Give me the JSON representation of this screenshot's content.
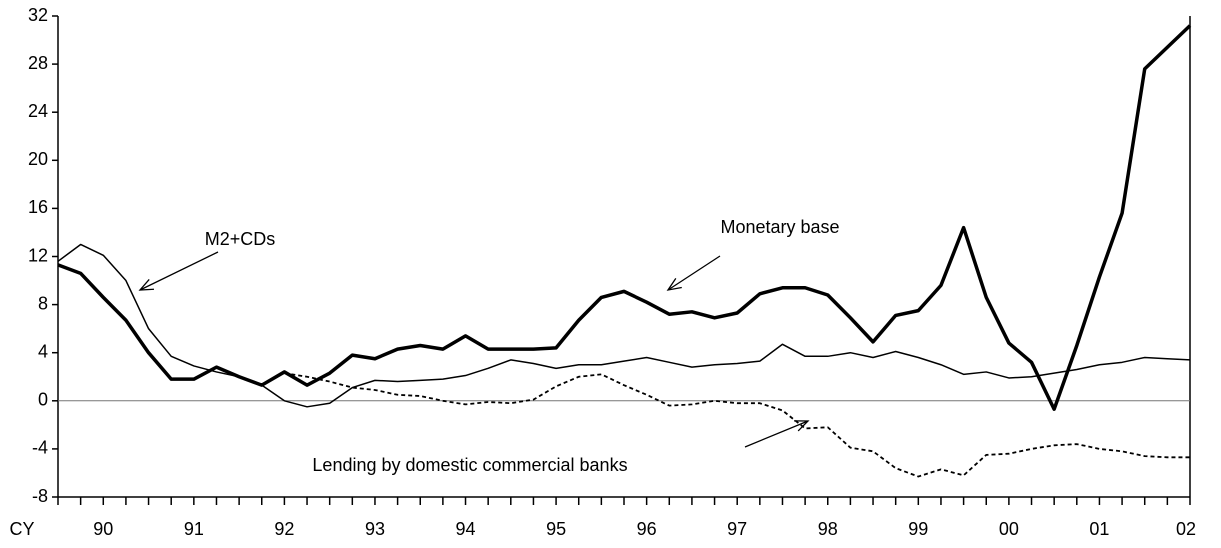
{
  "chart_data": {
    "type": "line",
    "x_label": "CY",
    "categories": [
      null,
      null,
      "90",
      null,
      null,
      null,
      "91",
      null,
      null,
      null,
      "92",
      null,
      null,
      null,
      "93",
      null,
      null,
      null,
      "94",
      null,
      null,
      null,
      "95",
      null,
      null,
      null,
      "96",
      null,
      null,
      null,
      "97",
      null,
      null,
      null,
      "98",
      null,
      null,
      null,
      "99",
      null,
      null,
      null,
      "00",
      null,
      null,
      null,
      "01",
      null,
      null,
      null,
      "02"
    ],
    "series": [
      {
        "name": "Monetary base",
        "color": "#000000",
        "style": "thick",
        "values": [
          11.3,
          10.6,
          8.6,
          6.7,
          4.0,
          1.8,
          1.8,
          2.8,
          2.0,
          1.3,
          2.4,
          1.3,
          2.3,
          3.8,
          3.5,
          4.3,
          4.6,
          4.3,
          5.4,
          4.3,
          4.3,
          4.3,
          4.4,
          6.7,
          8.6,
          9.1,
          8.2,
          7.2,
          7.4,
          6.9,
          7.3,
          8.9,
          9.4,
          9.4,
          8.8,
          6.9,
          4.9,
          7.1,
          7.5,
          9.6,
          14.4,
          8.6,
          4.8,
          3.2,
          -0.7,
          4.6,
          10.3,
          15.6,
          27.6,
          29.4,
          31.2
        ]
      },
      {
        "name": "M2+CDs",
        "color": "#000000",
        "style": "thin",
        "values": [
          11.6,
          13.0,
          12.1,
          10.0,
          6.0,
          3.7,
          2.9,
          2.4,
          2.0,
          1.3,
          0.0,
          -0.5,
          -0.2,
          1.1,
          1.7,
          1.6,
          1.7,
          1.8,
          2.1,
          2.7,
          3.4,
          3.1,
          2.7,
          3.0,
          3.0,
          3.3,
          3.6,
          3.2,
          2.8,
          3.0,
          3.1,
          3.3,
          4.7,
          3.7,
          3.7,
          4.0,
          3.6,
          4.1,
          3.6,
          3.0,
          2.2,
          2.4,
          1.9,
          2.0,
          2.3,
          2.6,
          3.0,
          3.2,
          3.6,
          3.5,
          3.4
        ]
      },
      {
        "name": "Lending by domestic commercial banks",
        "color": "#000000",
        "style": "dashed",
        "values": [
          null,
          null,
          null,
          null,
          null,
          null,
          null,
          null,
          null,
          null,
          2.3,
          2.0,
          1.6,
          1.1,
          0.9,
          0.5,
          0.4,
          0.0,
          -0.3,
          -0.1,
          -0.2,
          0.1,
          1.2,
          2.0,
          2.2,
          1.3,
          0.5,
          -0.4,
          -0.3,
          0.0,
          -0.2,
          -0.2,
          -0.8,
          -2.3,
          -2.2,
          -3.9,
          -4.2,
          -5.6,
          -6.3,
          -5.7,
          -6.2,
          -4.5,
          -4.4,
          -4.0,
          -3.7,
          -3.6,
          -4.0,
          -4.2,
          -4.6,
          -4.7,
          -4.7
        ]
      }
    ],
    "ylim": [
      -8,
      32
    ],
    "yticks": [
      -8,
      -4,
      0,
      4,
      8,
      12,
      16,
      20,
      24,
      28,
      32
    ],
    "zero_line": true
  }
}
